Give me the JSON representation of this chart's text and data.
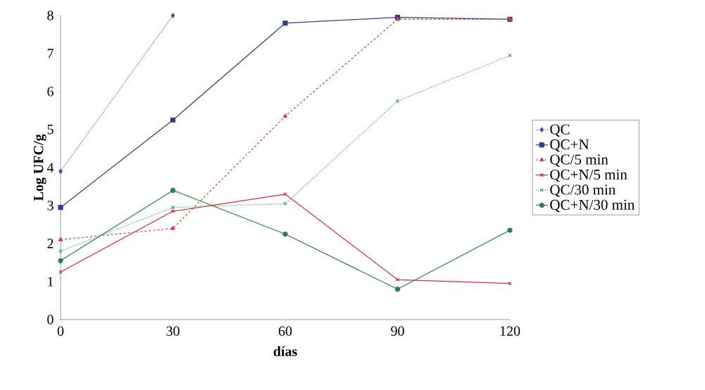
{
  "chart_data": {
    "type": "line",
    "xlabel": "días",
    "ylabel": "Log UFC/g",
    "x": [
      0,
      30,
      60,
      90,
      120
    ],
    "series": [
      {
        "name": "QC",
        "color": "#3a56a8",
        "marker": "diamond",
        "line_style": "dotted",
        "values": [
          3.9,
          8.0,
          null,
          null,
          null
        ]
      },
      {
        "name": "QC+N",
        "color": "#2c3f8c",
        "marker": "square",
        "line_style": "solid",
        "values": [
          2.95,
          5.25,
          7.8,
          7.95,
          7.9
        ]
      },
      {
        "name": "QC/5 min",
        "color": "#e03a3a",
        "marker": "triangle",
        "line_style": "dashed",
        "values": [
          2.1,
          2.4,
          5.35,
          7.9,
          7.9
        ]
      },
      {
        "name": "QC+N/5 min",
        "color": "#d83030",
        "marker": "cross",
        "line_style": "solid",
        "values": [
          1.25,
          2.85,
          3.3,
          1.05,
          0.95
        ]
      },
      {
        "name": "QC/30 min",
        "color": "#3a9a6a",
        "marker": "cross",
        "line_style": "dotted",
        "values": [
          1.8,
          2.95,
          3.05,
          5.75,
          6.95
        ]
      },
      {
        "name": "QC+N/30 min",
        "color": "#2e7d55",
        "marker": "circle",
        "line_style": "solid",
        "values": [
          1.55,
          3.4,
          2.25,
          0.8,
          2.35
        ]
      }
    ],
    "xlim": [
      0,
      120
    ],
    "xticks": [
      0,
      30,
      60,
      90,
      120
    ],
    "ylim": [
      0,
      8
    ],
    "yticks": [
      0,
      1,
      2,
      3,
      4,
      5,
      6,
      7,
      8
    ],
    "grid": false,
    "legend": "right"
  }
}
